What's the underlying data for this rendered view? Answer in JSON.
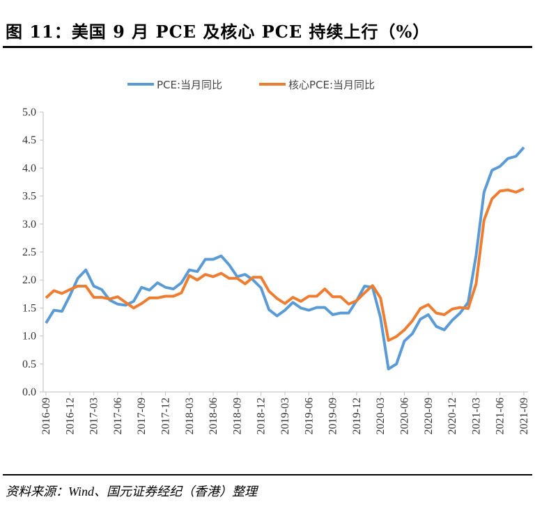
{
  "title": "图 11：美国 9 月 PCE 及核心 PCE 持续上行（%）",
  "source": "资料来源：Wind、国元证券经纪（香港）整理",
  "chart_data": {
    "type": "line",
    "ylim": [
      0,
      5.0
    ],
    "yticks": [
      "0.0",
      "0.5",
      "1.0",
      "1.5",
      "2.0",
      "2.5",
      "3.0",
      "3.5",
      "4.0",
      "4.5",
      "5.0"
    ],
    "xticks": [
      "2016-09",
      "2016-12",
      "2017-03",
      "2017-06",
      "2017-09",
      "2017-12",
      "2018-03",
      "2018-06",
      "2018-09",
      "2018-12",
      "2019-03",
      "2019-06",
      "2019-09",
      "2019-12",
      "2020-03",
      "2020-06",
      "2020-09",
      "2020-12",
      "2021-03",
      "2021-06",
      "2021-09"
    ],
    "x_range": [
      "2016-09",
      "2021-09"
    ],
    "x_frequency": "monthly",
    "legend_position": "top",
    "grid": false,
    "series": [
      {
        "name": "PCE:当月同比",
        "color": "#5B9BD5",
        "values": [
          1.23,
          1.46,
          1.44,
          1.72,
          2.03,
          2.18,
          1.89,
          1.83,
          1.64,
          1.57,
          1.55,
          1.62,
          1.87,
          1.82,
          1.95,
          1.87,
          1.84,
          1.95,
          2.18,
          2.15,
          2.37,
          2.37,
          2.43,
          2.27,
          2.06,
          2.1,
          2.0,
          1.86,
          1.47,
          1.36,
          1.46,
          1.6,
          1.5,
          1.46,
          1.51,
          1.51,
          1.38,
          1.41,
          1.41,
          1.63,
          1.89,
          1.87,
          1.33,
          0.41,
          0.5,
          0.91,
          1.04,
          1.3,
          1.38,
          1.17,
          1.11,
          1.28,
          1.41,
          1.6,
          2.44,
          3.57,
          3.96,
          4.03,
          4.17,
          4.21,
          4.37
        ]
      },
      {
        "name": "核心PCE:当月同比",
        "color": "#ED7D31",
        "values": [
          1.68,
          1.81,
          1.76,
          1.83,
          1.89,
          1.89,
          1.69,
          1.69,
          1.66,
          1.7,
          1.6,
          1.5,
          1.58,
          1.68,
          1.68,
          1.71,
          1.71,
          1.77,
          2.08,
          2.0,
          2.1,
          2.06,
          2.12,
          2.03,
          2.03,
          1.93,
          2.05,
          2.05,
          1.8,
          1.67,
          1.58,
          1.69,
          1.62,
          1.71,
          1.71,
          1.84,
          1.7,
          1.7,
          1.57,
          1.63,
          1.77,
          1.9,
          1.68,
          0.92,
          0.99,
          1.11,
          1.27,
          1.49,
          1.56,
          1.41,
          1.38,
          1.48,
          1.51,
          1.49,
          1.93,
          3.07,
          3.45,
          3.59,
          3.61,
          3.57,
          3.63
        ]
      }
    ]
  }
}
